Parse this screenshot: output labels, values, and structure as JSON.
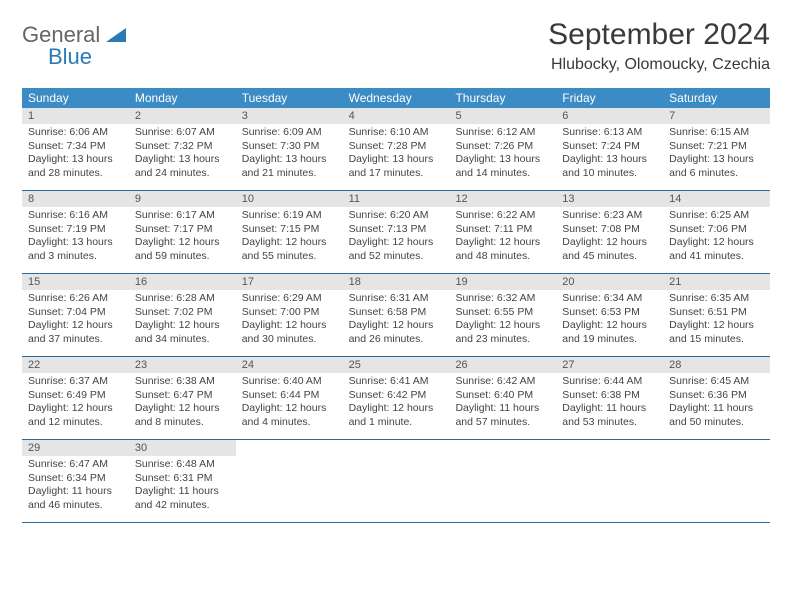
{
  "logo": {
    "line1": "General",
    "line2": "Blue"
  },
  "title": "September 2024",
  "location": "Hlubocky, Olomoucky, Czechia",
  "colors": {
    "header_bg": "#3b8bc4",
    "header_text": "#ffffff",
    "dayNumBg": "#e5e5e5",
    "border": "#2a6a9a",
    "logoBlue": "#2a7ab8"
  },
  "dayNames": [
    "Sunday",
    "Monday",
    "Tuesday",
    "Wednesday",
    "Thursday",
    "Friday",
    "Saturday"
  ],
  "weeks": [
    [
      {
        "n": "1",
        "sr": "6:06 AM",
        "ss": "7:34 PM",
        "dl": "13 hours and 28 minutes."
      },
      {
        "n": "2",
        "sr": "6:07 AM",
        "ss": "7:32 PM",
        "dl": "13 hours and 24 minutes."
      },
      {
        "n": "3",
        "sr": "6:09 AM",
        "ss": "7:30 PM",
        "dl": "13 hours and 21 minutes."
      },
      {
        "n": "4",
        "sr": "6:10 AM",
        "ss": "7:28 PM",
        "dl": "13 hours and 17 minutes."
      },
      {
        "n": "5",
        "sr": "6:12 AM",
        "ss": "7:26 PM",
        "dl": "13 hours and 14 minutes."
      },
      {
        "n": "6",
        "sr": "6:13 AM",
        "ss": "7:24 PM",
        "dl": "13 hours and 10 minutes."
      },
      {
        "n": "7",
        "sr": "6:15 AM",
        "ss": "7:21 PM",
        "dl": "13 hours and 6 minutes."
      }
    ],
    [
      {
        "n": "8",
        "sr": "6:16 AM",
        "ss": "7:19 PM",
        "dl": "13 hours and 3 minutes."
      },
      {
        "n": "9",
        "sr": "6:17 AM",
        "ss": "7:17 PM",
        "dl": "12 hours and 59 minutes."
      },
      {
        "n": "10",
        "sr": "6:19 AM",
        "ss": "7:15 PM",
        "dl": "12 hours and 55 minutes."
      },
      {
        "n": "11",
        "sr": "6:20 AM",
        "ss": "7:13 PM",
        "dl": "12 hours and 52 minutes."
      },
      {
        "n": "12",
        "sr": "6:22 AM",
        "ss": "7:11 PM",
        "dl": "12 hours and 48 minutes."
      },
      {
        "n": "13",
        "sr": "6:23 AM",
        "ss": "7:08 PM",
        "dl": "12 hours and 45 minutes."
      },
      {
        "n": "14",
        "sr": "6:25 AM",
        "ss": "7:06 PM",
        "dl": "12 hours and 41 minutes."
      }
    ],
    [
      {
        "n": "15",
        "sr": "6:26 AM",
        "ss": "7:04 PM",
        "dl": "12 hours and 37 minutes."
      },
      {
        "n": "16",
        "sr": "6:28 AM",
        "ss": "7:02 PM",
        "dl": "12 hours and 34 minutes."
      },
      {
        "n": "17",
        "sr": "6:29 AM",
        "ss": "7:00 PM",
        "dl": "12 hours and 30 minutes."
      },
      {
        "n": "18",
        "sr": "6:31 AM",
        "ss": "6:58 PM",
        "dl": "12 hours and 26 minutes."
      },
      {
        "n": "19",
        "sr": "6:32 AM",
        "ss": "6:55 PM",
        "dl": "12 hours and 23 minutes."
      },
      {
        "n": "20",
        "sr": "6:34 AM",
        "ss": "6:53 PM",
        "dl": "12 hours and 19 minutes."
      },
      {
        "n": "21",
        "sr": "6:35 AM",
        "ss": "6:51 PM",
        "dl": "12 hours and 15 minutes."
      }
    ],
    [
      {
        "n": "22",
        "sr": "6:37 AM",
        "ss": "6:49 PM",
        "dl": "12 hours and 12 minutes."
      },
      {
        "n": "23",
        "sr": "6:38 AM",
        "ss": "6:47 PM",
        "dl": "12 hours and 8 minutes."
      },
      {
        "n": "24",
        "sr": "6:40 AM",
        "ss": "6:44 PM",
        "dl": "12 hours and 4 minutes."
      },
      {
        "n": "25",
        "sr": "6:41 AM",
        "ss": "6:42 PM",
        "dl": "12 hours and 1 minute."
      },
      {
        "n": "26",
        "sr": "6:42 AM",
        "ss": "6:40 PM",
        "dl": "11 hours and 57 minutes."
      },
      {
        "n": "27",
        "sr": "6:44 AM",
        "ss": "6:38 PM",
        "dl": "11 hours and 53 minutes."
      },
      {
        "n": "28",
        "sr": "6:45 AM",
        "ss": "6:36 PM",
        "dl": "11 hours and 50 minutes."
      }
    ],
    [
      {
        "n": "29",
        "sr": "6:47 AM",
        "ss": "6:34 PM",
        "dl": "11 hours and 46 minutes."
      },
      {
        "n": "30",
        "sr": "6:48 AM",
        "ss": "6:31 PM",
        "dl": "11 hours and 42 minutes."
      },
      null,
      null,
      null,
      null,
      null
    ]
  ],
  "labels": {
    "sunrise": "Sunrise:",
    "sunset": "Sunset:",
    "daylight": "Daylight:"
  }
}
